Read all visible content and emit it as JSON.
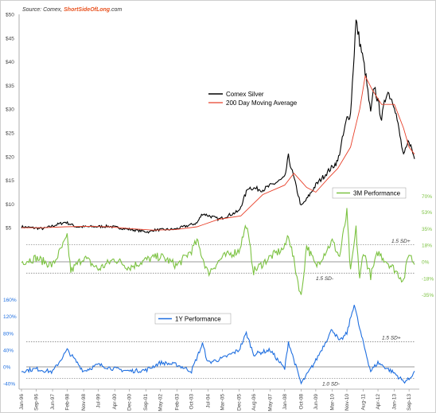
{
  "source": {
    "prefix": "Source: Comex, ",
    "brand": "ShortSideOfLong",
    "suffix": ".com",
    "brand_color": "#e8511e"
  },
  "x_ticks": [
    "Jan-96",
    "Sep-96",
    "Jun-97",
    "Feb-98",
    "Nov-98",
    "Jul-99",
    "Apr-00",
    "Dec-00",
    "Sep-01",
    "May-02",
    "Feb-03",
    "Oct-03",
    "Jul-04",
    "Mar-05",
    "Dec-05",
    "Aug-06",
    "May-07",
    "Jan-08",
    "Oct-08",
    "Jun-09",
    "Mar-10",
    "Nov-10",
    "Aug-11",
    "Apr-12",
    "Jan-13",
    "Sep-13"
  ],
  "colors": {
    "price": "#000000",
    "ma": "#e8402a",
    "perf3m": "#7cc242",
    "perf1y": "#1f6fe0"
  },
  "chart_data": [
    {
      "type": "line",
      "series": [
        {
          "name": "Comex Silver",
          "x": [
            "Jan-96",
            "Jan-97",
            "Jan-98",
            "Jul-98",
            "Jan-99",
            "Jan-00",
            "Jan-01",
            "Nov-01",
            "Jan-02",
            "Jan-03",
            "Jan-04",
            "Apr-04",
            "Jan-05",
            "Dec-05",
            "May-06",
            "Jan-07",
            "Jan-08",
            "Mar-08",
            "Oct-08",
            "Jan-09",
            "Jun-09",
            "Jan-10",
            "Jun-10",
            "Nov-10",
            "Jan-11",
            "Apr-11",
            "Sep-11",
            "Dec-11",
            "Feb-12",
            "Jun-12",
            "Sep-12",
            "Jan-13",
            "Jun-13",
            "Sep-13",
            "Dec-13"
          ],
          "values": [
            5.2,
            4.8,
            6.2,
            5.2,
            5.2,
            5.3,
            4.6,
            4.1,
            4.5,
            4.7,
            6.0,
            8.0,
            6.8,
            8.5,
            13.5,
            13.0,
            15.5,
            20.0,
            9.5,
            11.0,
            14.0,
            17.0,
            19.0,
            28.0,
            29.0,
            48.5,
            38.0,
            29.0,
            35.0,
            28.0,
            34.0,
            31.0,
            20.0,
            23.5,
            19.5
          ]
        },
        {
          "name": "200 Day Moving Average",
          "x": [
            "Jan-96",
            "Jan-97",
            "Jan-98",
            "Jan-99",
            "Jan-00",
            "Jan-01",
            "Jan-02",
            "Jan-03",
            "Jan-04",
            "Jan-05",
            "Jan-06",
            "Jan-07",
            "Jan-08",
            "Jun-08",
            "Jan-09",
            "Jun-09",
            "Jan-10",
            "Jun-10",
            "Jan-11",
            "Jun-11",
            "Sep-11",
            "Jan-12",
            "Jun-12",
            "Jan-13",
            "Jun-13",
            "Sep-13",
            "Dec-13"
          ],
          "values": [
            5.0,
            5.0,
            5.2,
            5.3,
            5.2,
            4.8,
            4.5,
            4.6,
            5.2,
            6.8,
            7.5,
            12.0,
            14.0,
            16.5,
            13.5,
            12.5,
            15.5,
            17.5,
            22.0,
            30.0,
            37.0,
            34.0,
            31.0,
            31.0,
            26.0,
            22.0,
            20.5
          ]
        }
      ],
      "ylim": [
        0,
        50
      ],
      "y_ticks": [
        "$5",
        "$10",
        "$15",
        "$20",
        "$25",
        "$30",
        "$35",
        "$40",
        "$45",
        "$50"
      ],
      "y_tick_values": [
        5,
        10,
        15,
        20,
        25,
        30,
        35,
        40,
        45,
        50
      ],
      "legend": [
        "Comex Silver",
        "200 Day Moving Average"
      ],
      "legend_placement": "center"
    },
    {
      "type": "line",
      "series": [
        {
          "name": "3M Performance",
          "x": [
            "Jan-96",
            "Sep-96",
            "Jun-97",
            "Feb-98",
            "Apr-98",
            "Nov-98",
            "Jul-99",
            "Apr-00",
            "Dec-00",
            "Sep-01",
            "May-02",
            "Feb-03",
            "Oct-03",
            "Jan-04",
            "Jul-04",
            "Mar-05",
            "Dec-05",
            "Apr-06",
            "Aug-06",
            "May-07",
            "Jan-08",
            "Mar-08",
            "Oct-08",
            "Jan-09",
            "Jun-09",
            "Mar-10",
            "Jul-10",
            "Nov-10",
            "Jan-11",
            "Apr-11",
            "Jun-11",
            "Aug-11",
            "Dec-11",
            "Apr-12",
            "Jan-13",
            "Jun-13",
            "Sep-13",
            "Dec-13"
          ],
          "values": [
            0,
            4,
            -4,
            26,
            -10,
            5,
            -8,
            3,
            -6,
            2,
            6,
            -4,
            12,
            22,
            -12,
            5,
            12,
            40,
            -10,
            5,
            15,
            30,
            -38,
            18,
            -5,
            22,
            5,
            53,
            -12,
            35,
            -20,
            12,
            -15,
            10,
            -8,
            -20,
            10,
            -3
          ]
        },
        {
          "name": "1Y Performance",
          "x": [
            "Jan-96",
            "Sep-96",
            "Jun-97",
            "Feb-98",
            "Nov-98",
            "Jul-99",
            "Apr-00",
            "Dec-00",
            "Sep-01",
            "May-02",
            "Feb-03",
            "Oct-03",
            "Apr-04",
            "Jul-04",
            "Mar-05",
            "Dec-05",
            "Apr-06",
            "Aug-06",
            "May-07",
            "Jan-08",
            "Mar-08",
            "Oct-08",
            "Jan-09",
            "Jun-09",
            "Mar-10",
            "Jul-10",
            "Nov-10",
            "Mar-11",
            "Jun-11",
            "Dec-11",
            "Apr-12",
            "Jan-13",
            "Jun-13",
            "Sep-13",
            "Dec-13"
          ],
          "values": [
            -10,
            -5,
            -12,
            40,
            -10,
            5,
            -5,
            -10,
            -8,
            10,
            5,
            -10,
            55,
            10,
            20,
            40,
            80,
            30,
            40,
            -5,
            60,
            -40,
            -20,
            15,
            90,
            60,
            80,
            150,
            90,
            -10,
            10,
            -15,
            -35,
            -30,
            -10
          ]
        }
      ],
      "y_ticks_3m": [
        "70%",
        "53%",
        "35%",
        "18%",
        "0%",
        "-18%",
        "-35%"
      ],
      "y_tick_values_3m": [
        70,
        53,
        35,
        18,
        0,
        -18,
        -35
      ],
      "y_ticks_1y": [
        "160%",
        "120%",
        "80%",
        "40%",
        "0%",
        "-40%"
      ],
      "y_tick_values_1y": [
        160,
        120,
        80,
        40,
        0,
        -40
      ],
      "sd_3m": {
        "upper": 18,
        "lower": -12,
        "upper_label": "1.5 SD+",
        "lower_label": "1.5 SD-"
      },
      "sd_1y": {
        "upper": 60,
        "lower": -27,
        "upper_label": "1.5 SD+",
        "lower_label": "1.0 SD-"
      },
      "legend": [
        "3M Performance",
        "1Y Performance"
      ]
    }
  ]
}
